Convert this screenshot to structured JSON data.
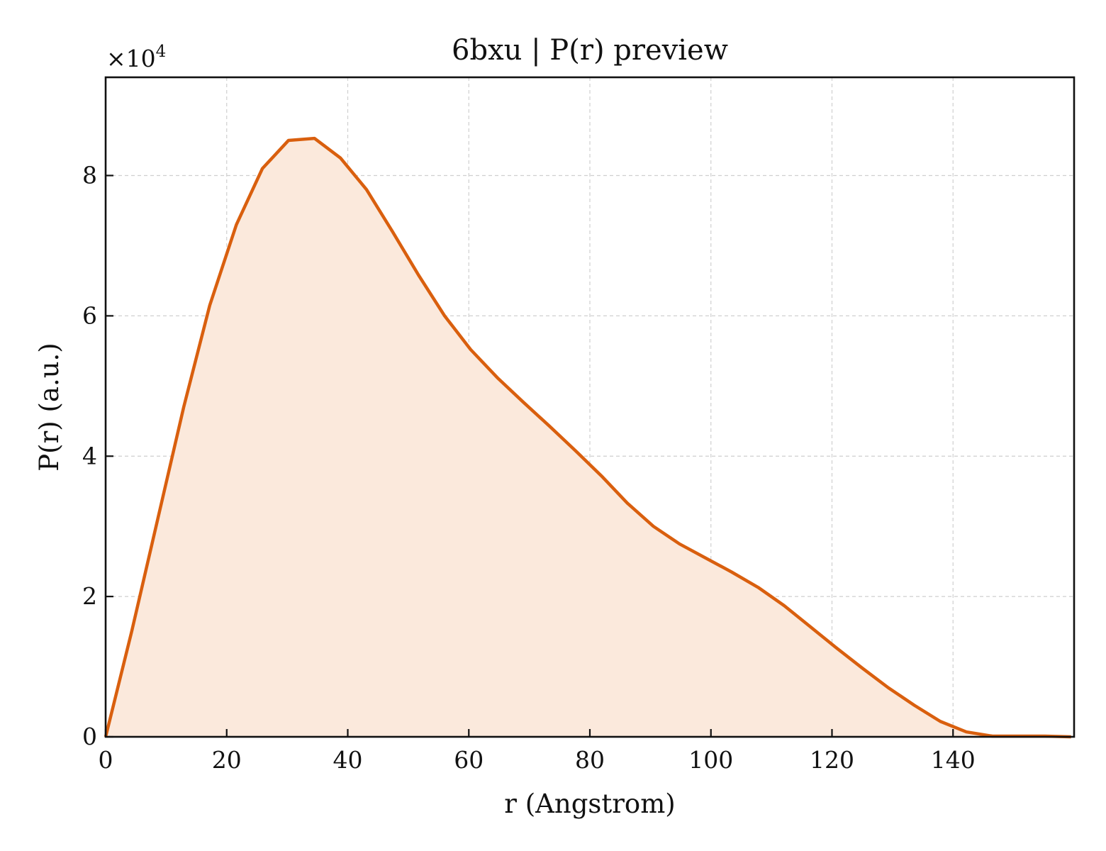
{
  "chart_data": {
    "type": "area",
    "title": "6bxu | P(r) preview",
    "xlabel": "r (Angstrom)",
    "ylabel": "P(r) (a.u.)",
    "y_multiplier_label": "×10",
    "y_multiplier_exponent": "4",
    "xlim": [
      0,
      160
    ],
    "ylim": [
      0,
      9.4
    ],
    "x_ticks": [
      0,
      20,
      40,
      60,
      80,
      100,
      120,
      140
    ],
    "y_ticks": [
      0,
      2,
      4,
      6,
      8
    ],
    "grid": true,
    "line_color": "#d95f0e",
    "fill_color": "#fbe9dc",
    "series": [
      {
        "x": [
          0,
          4.3,
          8.6,
          12.9,
          17.2,
          21.6,
          25.9,
          30.2,
          34.5,
          38.8,
          43.1,
          47.4,
          51.7,
          56.0,
          60.3,
          64.7,
          69.0,
          73.3,
          77.6,
          81.9,
          86.2,
          90.5,
          94.8,
          99.1,
          103.4,
          107.8,
          112.1,
          116.4,
          120.7,
          125.0,
          129.3,
          133.6,
          137.9,
          142.2,
          146.5,
          150.8,
          155.2,
          159.5
        ],
        "values": [
          0,
          1.5,
          3.1,
          4.7,
          6.15,
          7.3,
          8.1,
          8.5,
          8.53,
          8.25,
          7.8,
          7.2,
          6.58,
          6.0,
          5.52,
          5.12,
          4.77,
          4.43,
          4.08,
          3.72,
          3.33,
          3.0,
          2.75,
          2.55,
          2.35,
          2.13,
          1.87,
          1.57,
          1.27,
          0.98,
          0.7,
          0.45,
          0.22,
          0.07,
          0.01,
          0.01,
          0.01,
          0
        ]
      }
    ]
  }
}
